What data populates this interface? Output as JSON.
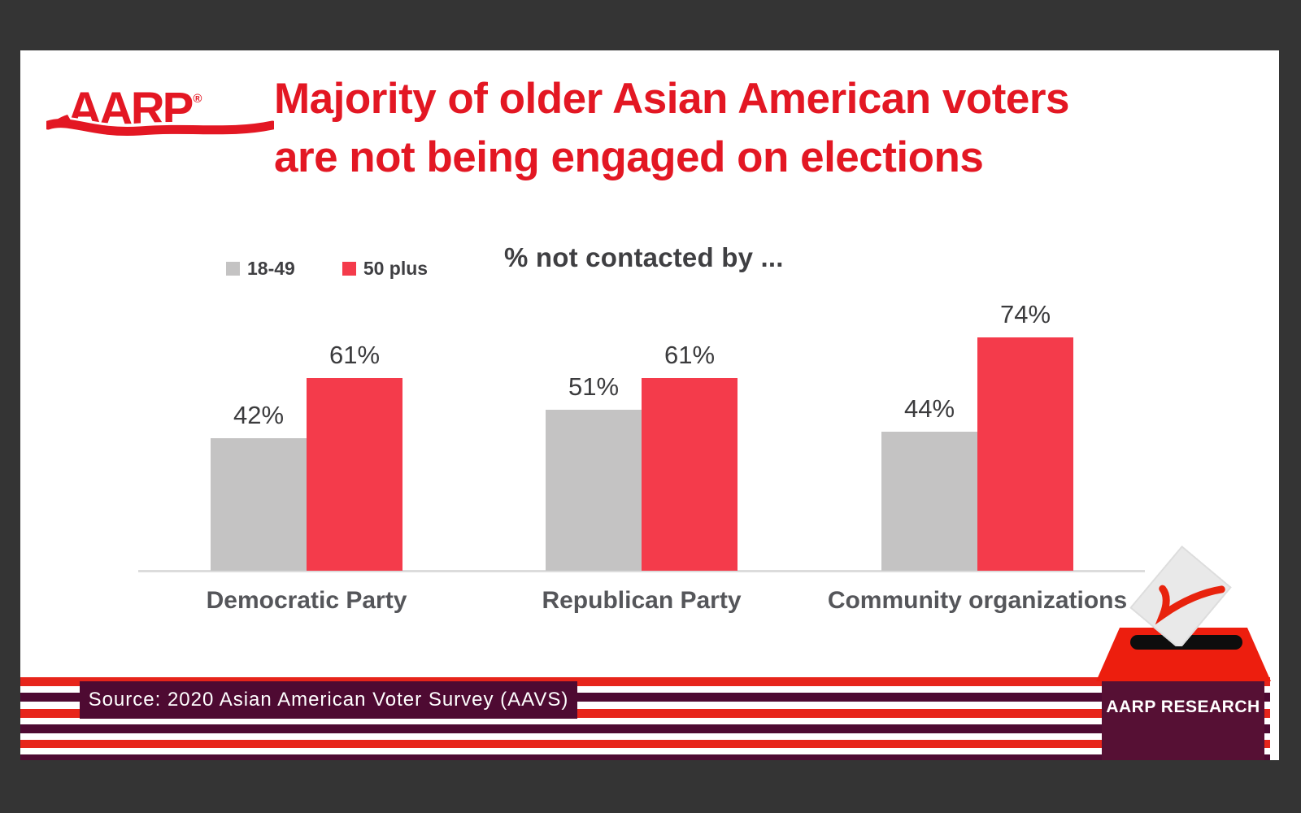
{
  "header": {
    "logo_text": "AARP",
    "logo_registered": "®",
    "title_line1": "Majority of older Asian American voters",
    "title_line2": "are not being engaged on elections"
  },
  "chart_data": {
    "type": "bar",
    "title": "% not contacted by ...",
    "categories": [
      "Democratic Party",
      "Republican Party",
      "Community organizations"
    ],
    "series": [
      {
        "name": "18-49",
        "color": "#C4C3C3",
        "values": [
          42,
          51,
          44
        ]
      },
      {
        "name": "50 plus",
        "color": "#F43B4B",
        "values": [
          61,
          61,
          74
        ]
      }
    ],
    "value_suffix": "%",
    "ylim": [
      0,
      80
    ],
    "grid": false,
    "legend_position": "top-left",
    "value_labels": true
  },
  "footer": {
    "source_text": "Source: 2020 Asian American Voter Survey (AAVS)",
    "badge_text": "AARP RESEARCH"
  },
  "colors": {
    "title_red": "#E31723",
    "bar_red": "#F43B4B",
    "bar_gray": "#C4C3C3",
    "stripe_red": "#E7251B",
    "stripe_maroon": "#4E0A32",
    "box_maroon": "#561034",
    "lid_red": "#ED1E0E",
    "check_red": "#E8230D",
    "frame": "#343434",
    "text_dark": "#414042"
  }
}
